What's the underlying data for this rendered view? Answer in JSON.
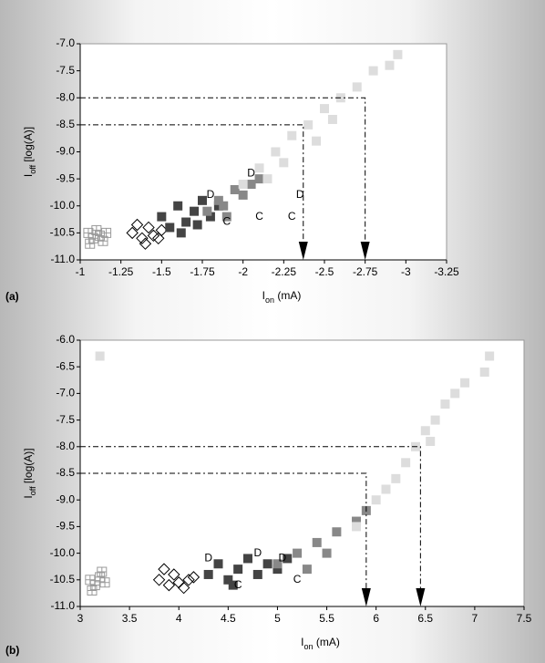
{
  "chart_data": [
    {
      "type": "scatter",
      "panel_label": "(a)",
      "xlabel": [
        "I",
        "on",
        " (mA)"
      ],
      "ylabel": [
        "I",
        "off",
        " [log(A)]"
      ],
      "xlim": [
        -1,
        -3.25
      ],
      "xticks": [
        -1,
        -1.25,
        -1.5,
        -1.75,
        -2,
        -2.25,
        -2.5,
        -2.75,
        -3,
        -3.25
      ],
      "ylim": [
        -11,
        -7
      ],
      "yticks": [
        {
          "value": -11,
          "label": "-11.0"
        },
        {
          "value": -10.5,
          "label": "-10.5"
        },
        {
          "value": -10,
          "label": "-10.0"
        },
        {
          "value": -9.5,
          "label": "-9.5"
        },
        {
          "value": -9,
          "label": "-9.0"
        },
        {
          "value": -8.5,
          "label": "-8.5"
        },
        {
          "value": -8,
          "label": "-8.0"
        },
        {
          "value": -7.5,
          "label": "-7.5"
        },
        {
          "value": -7,
          "label": "-7.0"
        }
      ],
      "grid": false,
      "series": [
        {
          "marker": "grid-square",
          "color": "#999999",
          "x": [
            -1.05,
            -1.08,
            -1.12,
            -1.1,
            -1.14,
            -1.06,
            -1.16
          ],
          "values": [
            -10.5,
            -10.6,
            -10.55,
            -10.45,
            -10.65,
            -10.7,
            -10.5
          ]
        },
        {
          "marker": "diamond",
          "color": "#000000",
          "x": [
            -1.32,
            -1.38,
            -1.42,
            -1.45,
            -1.35,
            -1.48,
            -1.4,
            -1.5
          ],
          "values": [
            -10.5,
            -10.6,
            -10.4,
            -10.55,
            -10.35,
            -10.6,
            -10.7,
            -10.45
          ]
        },
        {
          "marker": "square",
          "color": "#444444",
          "x": [
            -1.5,
            -1.55,
            -1.6,
            -1.65,
            -1.7,
            -1.75,
            -1.8,
            -1.62,
            -1.85,
            -1.72
          ],
          "values": [
            -10.2,
            -10.4,
            -10.0,
            -10.3,
            -10.1,
            -9.9,
            -10.2,
            -10.5,
            -10.0,
            -10.35
          ]
        },
        {
          "marker": "square",
          "color": "#888888",
          "x": [
            -1.78,
            -1.85,
            -1.9,
            -1.95,
            -2.0,
            -2.05,
            -1.88,
            -2.1
          ],
          "values": [
            -10.1,
            -9.9,
            -10.2,
            -9.7,
            -9.8,
            -9.6,
            -10.0,
            -9.5
          ]
        },
        {
          "marker": "D",
          "color": "#999999",
          "x": [
            -2.05,
            -2.35,
            -1.8
          ],
          "values": [
            -9.4,
            -9.8,
            -9.8
          ]
        },
        {
          "marker": "C",
          "color": "#555555",
          "x": [
            -2.1,
            -2.3,
            -1.9
          ],
          "values": [
            -10.2,
            -10.2,
            -10.3
          ]
        },
        {
          "marker": "square",
          "color": "#dddddd",
          "x": [
            -2.0,
            -2.1,
            -2.2,
            -2.3,
            -2.4,
            -2.5,
            -2.6,
            -2.7,
            -2.8,
            -2.9,
            -2.95,
            -2.25,
            -2.45,
            -2.55,
            -2.15
          ],
          "values": [
            -9.6,
            -9.3,
            -9.0,
            -8.7,
            -8.5,
            -8.2,
            -8.0,
            -7.8,
            -7.5,
            -7.4,
            -7.2,
            -9.2,
            -8.8,
            -8.4,
            -9.5
          ]
        }
      ],
      "reference_lines": [
        {
          "x": -2.37,
          "y": -8.5
        },
        {
          "x": -2.75,
          "y": -8
        }
      ]
    },
    {
      "type": "scatter",
      "panel_label": "(b)",
      "xlabel": [
        "I",
        "on",
        " (mA)"
      ],
      "ylabel": [
        "I",
        "off",
        " [log(A)]"
      ],
      "xlim": [
        3,
        7.5
      ],
      "xticks": [
        3,
        3.5,
        4,
        4.5,
        5,
        5.5,
        6,
        6.5,
        7,
        7.5
      ],
      "ylim": [
        -11,
        -6
      ],
      "yticks": [
        {
          "value": -11,
          "label": "-11.0"
        },
        -10.5,
        {
          "value": -10,
          "label": "-10.0"
        },
        -9.5,
        {
          "value": -9,
          "label": "-9.0"
        },
        -8.5,
        {
          "value": -8,
          "label": "-8.0"
        },
        -7.5,
        {
          "value": -7,
          "label": "-7.0"
        },
        -6.5,
        {
          "value": -6,
          "label": "-6.0"
        }
      ],
      "grid": false,
      "series": [
        {
          "marker": "grid-square",
          "color": "#999999",
          "x": [
            3.1,
            3.15,
            3.2,
            3.25,
            3.12,
            3.22
          ],
          "values": [
            -10.5,
            -10.6,
            -10.45,
            -10.55,
            -10.7,
            -10.35
          ]
        },
        {
          "marker": "diamond",
          "color": "#000000",
          "x": [
            3.8,
            3.9,
            3.95,
            4.0,
            4.1,
            3.85,
            4.05,
            4.15
          ],
          "values": [
            -10.5,
            -10.6,
            -10.4,
            -10.55,
            -10.5,
            -10.3,
            -10.65,
            -10.45
          ]
        },
        {
          "marker": "square",
          "color": "#444444",
          "x": [
            4.3,
            4.4,
            4.5,
            4.6,
            4.7,
            4.8,
            4.9,
            5.0,
            5.1,
            4.55
          ],
          "values": [
            -10.4,
            -10.2,
            -10.5,
            -10.3,
            -10.1,
            -10.4,
            -10.2,
            -10.3,
            -10.1,
            -10.6
          ]
        },
        {
          "marker": "square",
          "color": "#888888",
          "x": [
            5.0,
            5.2,
            5.4,
            5.6,
            5.8,
            5.5,
            5.9,
            5.3
          ],
          "values": [
            -10.2,
            -10.0,
            -9.8,
            -9.6,
            -9.4,
            -10.0,
            -9.2,
            -10.3
          ]
        },
        {
          "marker": "D",
          "color": "#999999",
          "x": [
            4.3,
            4.8,
            5.05
          ],
          "values": [
            -10.1,
            -10.0,
            -10.1
          ]
        },
        {
          "marker": "C",
          "color": "#555555",
          "x": [
            5.2,
            4.6
          ],
          "values": [
            -10.5,
            -10.6
          ]
        },
        {
          "marker": "square",
          "color": "#dddddd",
          "x": [
            5.8,
            6.0,
            6.2,
            6.3,
            6.4,
            6.5,
            6.6,
            6.7,
            6.8,
            6.9,
            7.1,
            7.15,
            3.2,
            6.1,
            6.55
          ],
          "values": [
            -9.5,
            -9.0,
            -8.6,
            -8.3,
            -8.0,
            -7.7,
            -7.5,
            -7.2,
            -7.0,
            -6.8,
            -6.6,
            -6.3,
            -6.3,
            -8.8,
            -7.9
          ]
        }
      ],
      "reference_lines": [
        {
          "x": 5.9,
          "y": -8.5
        },
        {
          "x": 6.45,
          "y": -8
        }
      ]
    }
  ]
}
